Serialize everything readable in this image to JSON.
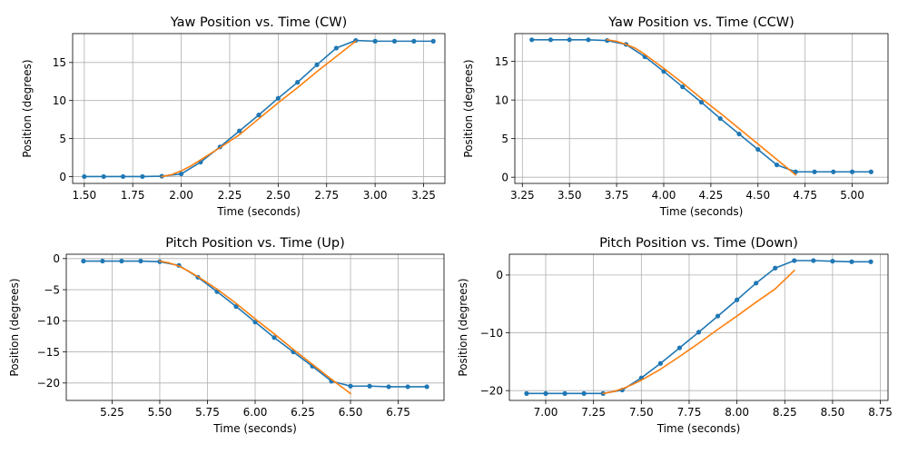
{
  "colors": {
    "measured": "#1f77b4",
    "model": "#ff7f0e",
    "grid": "#b0b0b0"
  },
  "chart_data": [
    {
      "type": "line",
      "title": "Yaw Position vs. Time (CW)",
      "xlabel": "Time (seconds)",
      "ylabel": "Position (degrees)",
      "xlim": [
        1.44,
        3.36
      ],
      "ylim": [
        -0.9,
        18.8
      ],
      "xticks": [
        1.5,
        1.75,
        2.0,
        2.25,
        2.5,
        2.75,
        3.0,
        3.25
      ],
      "xtick_labels": [
        "1.50",
        "1.75",
        "2.00",
        "2.25",
        "2.50",
        "2.75",
        "3.00",
        "3.25"
      ],
      "yticks": [
        0,
        5,
        10,
        15
      ],
      "ytick_labels": [
        "0",
        "5",
        "10",
        "15"
      ],
      "grid": true,
      "legend": "none",
      "series": [
        {
          "color": "#1f77b4",
          "marker": "dot",
          "x": [
            1.5,
            1.6,
            1.7,
            1.8,
            1.9,
            2.0,
            2.1,
            2.2,
            2.3,
            2.4,
            2.5,
            2.6,
            2.7,
            2.8,
            2.9,
            3.0,
            3.1,
            3.2,
            3.3
          ],
          "y": [
            0.0,
            0.0,
            0.0,
            0.0,
            0.05,
            0.35,
            1.9,
            3.9,
            6.0,
            8.1,
            10.3,
            12.4,
            14.7,
            16.9,
            17.9,
            17.8,
            17.8,
            17.8,
            17.8
          ]
        },
        {
          "color": "#ff7f0e",
          "marker": "none",
          "x": [
            1.9,
            1.95,
            2.0,
            2.05,
            2.1,
            2.15,
            2.2,
            2.3,
            2.4,
            2.5,
            2.6,
            2.7,
            2.8,
            2.9
          ],
          "y": [
            0.0,
            0.25,
            0.75,
            1.4,
            2.2,
            3.0,
            3.8,
            5.5,
            7.6,
            9.7,
            11.7,
            13.8,
            15.8,
            17.8
          ]
        }
      ]
    },
    {
      "type": "line",
      "title": "Yaw Position vs. Time (CCW)",
      "xlabel": "Time (seconds)",
      "ylabel": "Position (degrees)",
      "xlim": [
        3.21,
        5.19
      ],
      "ylim": [
        -0.8,
        18.6
      ],
      "xticks": [
        3.25,
        3.5,
        3.75,
        4.0,
        4.25,
        4.5,
        4.75,
        5.0
      ],
      "xtick_labels": [
        "3.25",
        "3.50",
        "3.75",
        "4.00",
        "4.25",
        "4.50",
        "4.75",
        "5.00"
      ],
      "yticks": [
        0,
        5,
        10,
        15
      ],
      "ytick_labels": [
        "0",
        "5",
        "10",
        "15"
      ],
      "grid": true,
      "legend": "none",
      "series": [
        {
          "color": "#1f77b4",
          "marker": "dot",
          "x": [
            3.3,
            3.4,
            3.5,
            3.6,
            3.7,
            3.8,
            3.9,
            4.0,
            4.1,
            4.2,
            4.3,
            4.4,
            4.5,
            4.6,
            4.7,
            4.8,
            4.9,
            5.0,
            5.1
          ],
          "y": [
            17.8,
            17.8,
            17.8,
            17.8,
            17.7,
            17.2,
            15.6,
            13.7,
            11.7,
            9.7,
            7.6,
            5.6,
            3.6,
            1.6,
            0.7,
            0.7,
            0.7,
            0.7,
            0.7
          ]
        },
        {
          "color": "#ff7f0e",
          "marker": "none",
          "x": [
            3.7,
            3.75,
            3.8,
            3.85,
            3.9,
            4.0,
            4.1,
            4.2,
            4.3,
            4.4,
            4.5,
            4.6,
            4.7
          ],
          "y": [
            17.8,
            17.6,
            17.2,
            16.7,
            15.9,
            14.1,
            12.2,
            10.2,
            8.3,
            6.3,
            4.3,
            2.3,
            0.3
          ]
        }
      ]
    },
    {
      "type": "line",
      "title": "Pitch Position vs. Time (Up)",
      "xlabel": "Time (seconds)",
      "ylabel": "Position (degrees)",
      "xlim": [
        5.01,
        6.99
      ],
      "ylim": [
        -22.8,
        0.7
      ],
      "xticks": [
        5.25,
        5.5,
        5.75,
        6.0,
        6.25,
        6.5,
        6.75
      ],
      "xtick_labels": [
        "5.25",
        "5.50",
        "5.75",
        "6.00",
        "6.25",
        "6.50",
        "6.75"
      ],
      "yticks": [
        0,
        -5,
        -10,
        -15,
        -20
      ],
      "ytick_labels": [
        "0",
        "−5",
        "−10",
        "−15",
        "−20"
      ],
      "grid": true,
      "legend": "none",
      "series": [
        {
          "color": "#1f77b4",
          "marker": "dot",
          "x": [
            5.1,
            5.2,
            5.3,
            5.4,
            5.5,
            5.6,
            5.7,
            5.8,
            5.9,
            6.0,
            6.1,
            6.2,
            6.3,
            6.4,
            6.5,
            6.6,
            6.7,
            6.8,
            6.9
          ],
          "y": [
            -0.4,
            -0.4,
            -0.4,
            -0.4,
            -0.5,
            -1.1,
            -3.0,
            -5.3,
            -7.7,
            -10.2,
            -12.7,
            -15.0,
            -17.3,
            -19.7,
            -20.5,
            -20.5,
            -20.6,
            -20.6,
            -20.6
          ]
        },
        {
          "color": "#ff7f0e",
          "marker": "none",
          "x": [
            5.5,
            5.55,
            5.6,
            5.65,
            5.7,
            5.8,
            5.9,
            6.0,
            6.1,
            6.2,
            6.3,
            6.4,
            6.5
          ],
          "y": [
            -0.4,
            -0.7,
            -1.2,
            -2.0,
            -2.9,
            -4.9,
            -7.2,
            -9.7,
            -12.1,
            -14.6,
            -17.0,
            -19.4,
            -21.7
          ]
        }
      ]
    },
    {
      "type": "line",
      "title": "Pitch Position vs. Time (Down)",
      "xlabel": "Time (seconds)",
      "ylabel": "Position (degrees)",
      "xlim": [
        6.81,
        8.79
      ],
      "ylim": [
        -21.7,
        3.6
      ],
      "xticks": [
        7.0,
        7.25,
        7.5,
        7.75,
        8.0,
        8.25,
        8.5,
        8.75
      ],
      "xtick_labels": [
        "7.00",
        "7.25",
        "7.50",
        "7.75",
        "8.00",
        "8.25",
        "8.50",
        "8.75"
      ],
      "yticks": [
        0,
        -10,
        -20
      ],
      "ytick_labels": [
        "0",
        "−10",
        "−20"
      ],
      "grid": true,
      "legend": "none",
      "series": [
        {
          "color": "#1f77b4",
          "marker": "dot",
          "x": [
            6.9,
            7.0,
            7.1,
            7.2,
            7.3,
            7.4,
            7.5,
            7.6,
            7.7,
            7.8,
            7.9,
            8.0,
            8.1,
            8.2,
            8.3,
            8.4,
            8.5,
            8.6,
            8.7
          ],
          "y": [
            -20.5,
            -20.5,
            -20.5,
            -20.5,
            -20.5,
            -19.9,
            -17.8,
            -15.3,
            -12.6,
            -9.9,
            -7.1,
            -4.3,
            -1.4,
            1.2,
            2.5,
            2.5,
            2.4,
            2.3,
            2.3
          ]
        },
        {
          "color": "#ff7f0e",
          "marker": "none",
          "x": [
            7.3,
            7.35,
            7.4,
            7.45,
            7.5,
            7.6,
            7.7,
            7.8,
            7.9,
            8.0,
            8.1,
            8.2,
            8.3
          ],
          "y": [
            -20.5,
            -20.2,
            -19.7,
            -19.0,
            -18.2,
            -16.3,
            -14.1,
            -11.8,
            -9.4,
            -7.1,
            -4.7,
            -2.4,
            0.8
          ]
        }
      ]
    }
  ]
}
